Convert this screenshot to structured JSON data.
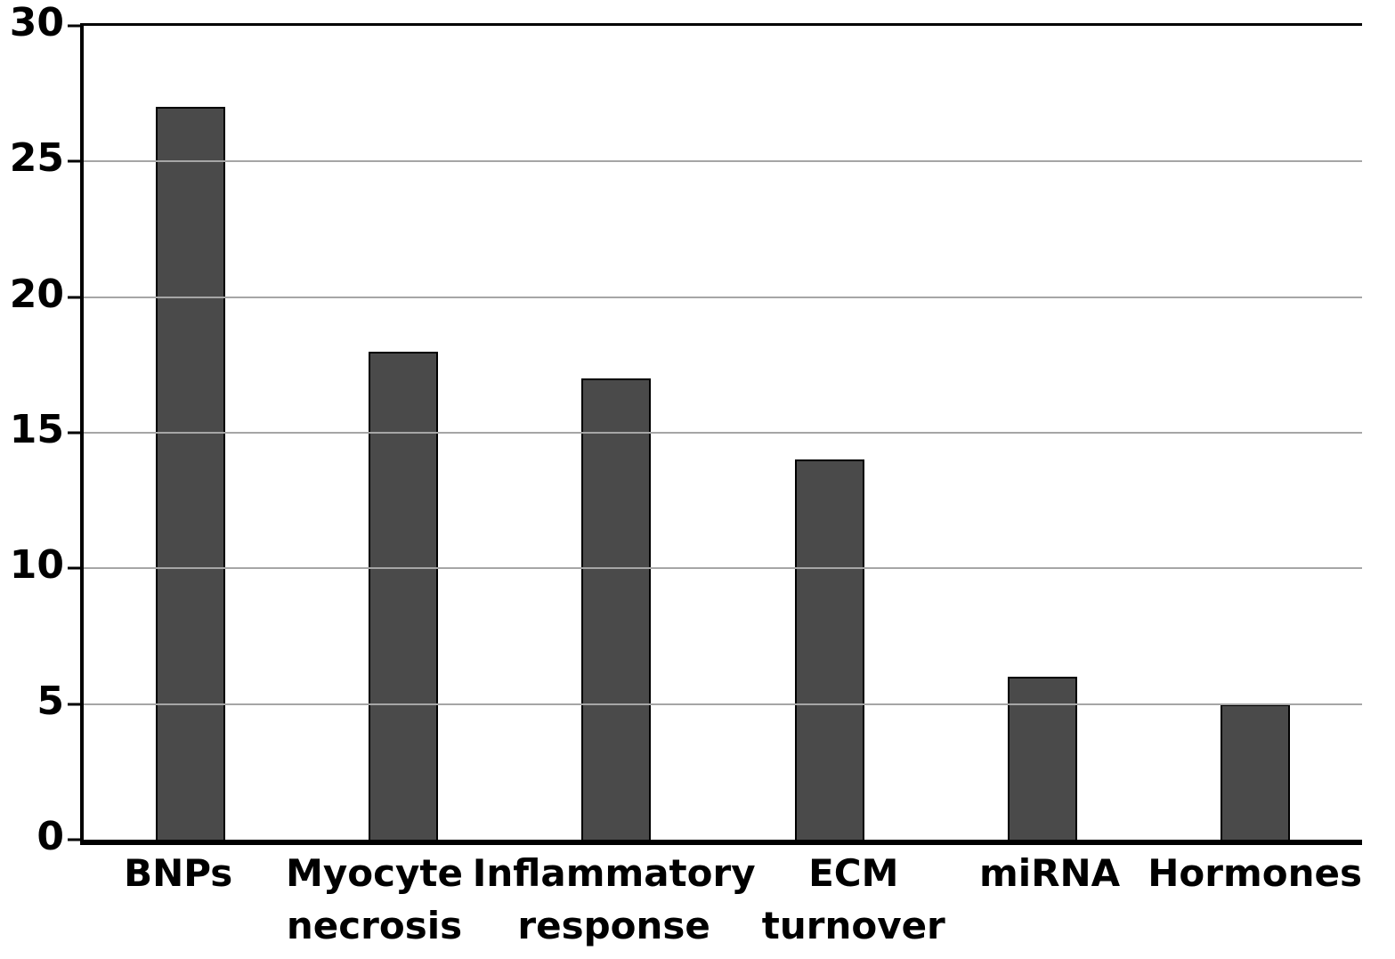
{
  "chart_data": {
    "type": "bar",
    "categories": [
      "BNPs",
      "Myocyte\nnecrosis",
      "Inflammatory\nresponse",
      "ECM\nturnover",
      "miRNA",
      "Hormones"
    ],
    "values": [
      27,
      18,
      17,
      14,
      6,
      5
    ],
    "title": "",
    "xlabel": "",
    "ylabel": "",
    "ylim": [
      0,
      30
    ],
    "yticks": [
      0,
      5,
      10,
      15,
      20,
      25,
      30
    ],
    "grid": true,
    "legend": "none",
    "bar_color": "#4a4a4a",
    "bar_border_color": "#000000",
    "gridline_color": "#a6a6a6",
    "axis_color": "#000000",
    "background_color": "#ffffff"
  }
}
